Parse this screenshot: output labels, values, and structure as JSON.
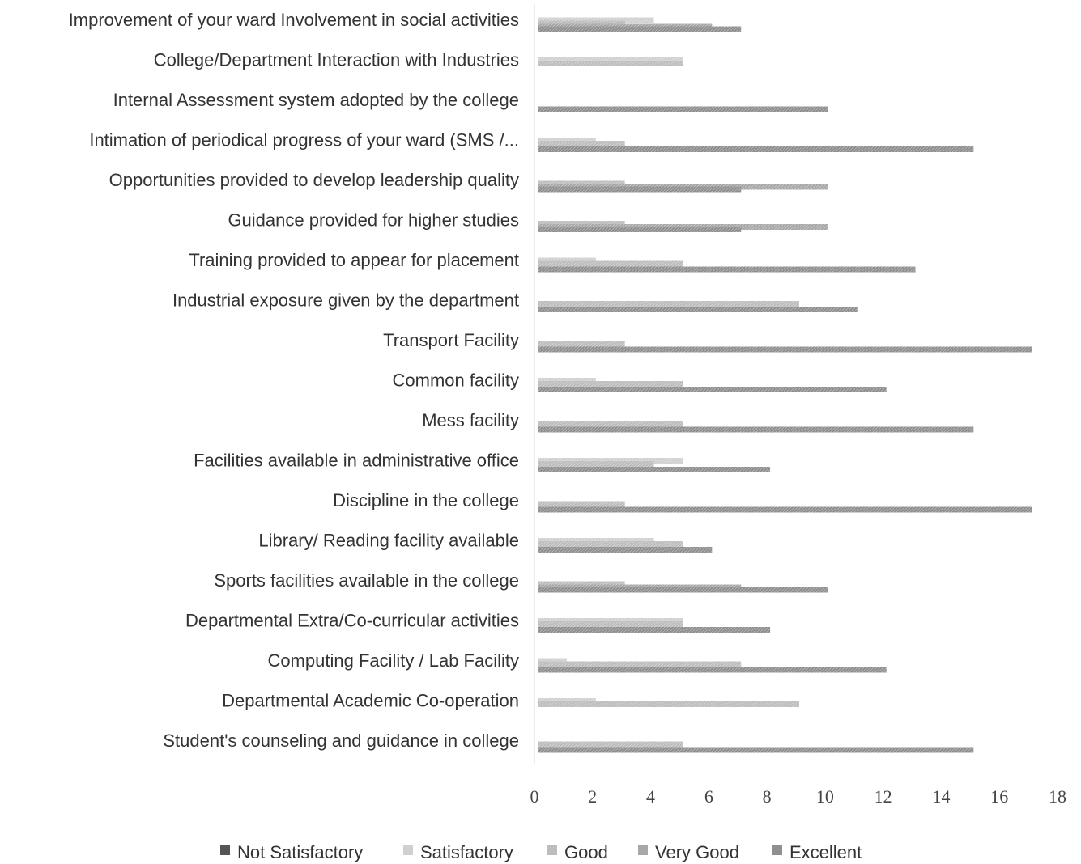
{
  "chart_data": {
    "type": "bar",
    "orientation": "horizontal",
    "grouping": "stacked-offset",
    "categories": [
      "Improvement  of your  ward Involvement in social activities",
      "College/Department Interaction with Industries",
      "Internal Assessment system adopted by the college",
      "Intimation of periodical progress of your ward (SMS /...",
      "Opportunities provided to develop leadership quality",
      "Guidance provided for higher studies",
      "Training provided to appear for placement",
      "Industrial exposure given by the department",
      "Transport Facility",
      "Common facility",
      "Mess facility",
      "Facilities available in administrative office",
      "Discipline in the college",
      "Library/ Reading facility available",
      "Sports facilities available in the college",
      "Departmental Extra/Co-curricular activities",
      "Computing Facility / Lab Facility",
      "Departmental Academic Co-operation",
      "Student's counseling and guidance in college"
    ],
    "series": [
      {
        "name": "Not Satisfactory",
        "color": "#555555",
        "values": [
          0,
          0,
          0,
          0,
          0,
          0,
          0,
          0,
          0,
          0,
          0,
          0,
          0,
          0,
          0,
          0,
          0,
          0,
          0
        ]
      },
      {
        "name": "Satisfactory",
        "color": "#d0d0d0",
        "values": [
          4,
          5,
          0,
          2,
          0,
          0,
          2,
          0,
          0,
          2,
          0,
          5,
          0,
          4,
          0,
          5,
          1,
          2,
          0
        ]
      },
      {
        "name": "Good",
        "color": "#bdbdbd",
        "values": [
          3,
          5,
          0,
          3,
          3,
          3,
          5,
          9,
          3,
          5,
          5,
          4,
          3,
          5,
          3,
          5,
          7,
          9,
          5
        ]
      },
      {
        "name": "Very Good",
        "color": "#a8a8a8",
        "values": [
          6,
          0,
          0,
          0,
          10,
          10,
          0,
          0,
          0,
          0,
          0,
          0,
          0,
          0,
          7,
          0,
          0,
          0,
          0
        ]
      },
      {
        "name": "Excellent",
        "color": "#8f8f8f",
        "values": [
          7,
          0,
          10,
          15,
          7,
          7,
          13,
          11,
          17,
          12,
          15,
          8,
          17,
          6,
          10,
          8,
          12,
          0,
          15
        ]
      }
    ],
    "xlim": [
      0,
      18
    ],
    "xticks": [
      "0",
      "2",
      "4",
      "6",
      "8",
      "10",
      "12",
      "14",
      "16",
      "18"
    ],
    "grid": false,
    "legend_position": "bottom"
  }
}
